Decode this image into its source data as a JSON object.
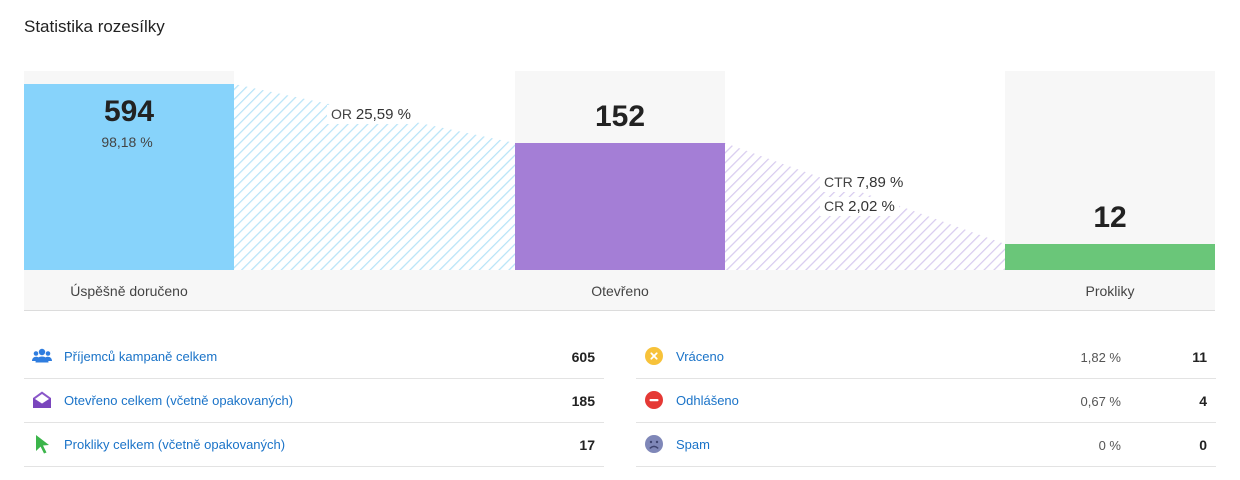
{
  "title": "Statistika rozesílky",
  "funnel": {
    "delivered": {
      "value": "594",
      "percent": "98,18 %",
      "label": "Úspěšně doručeno",
      "color": "#87d3fb"
    },
    "opened": {
      "value": "152",
      "label": "Otevřeno",
      "color": "#a47ed6"
    },
    "clicks": {
      "value": "12",
      "label": "Prokliky",
      "color": "#6ac679"
    },
    "open_rate": {
      "prefix": "OR",
      "value": "25,59 %"
    },
    "click_rate": {
      "prefix": "CTR",
      "value": "7,89 %"
    },
    "conversion_rate": {
      "prefix": "CR",
      "value": "2,02 %"
    }
  },
  "stats_left": [
    {
      "label": "Příjemců kampaně celkem",
      "value": "605",
      "icon": "users-icon",
      "color": "#2f7ddf"
    },
    {
      "label": "Otevřeno celkem (včetně opakovaných)",
      "value": "185",
      "icon": "open-envelope-icon",
      "color": "#8a57c9"
    },
    {
      "label": "Prokliky celkem (včetně opakovaných)",
      "value": "17",
      "icon": "cursor-icon",
      "color": "#3bb54a"
    }
  ],
  "stats_right": [
    {
      "label": "Vráceno",
      "percent": "1,82 %",
      "value": "11",
      "icon": "bounce-icon",
      "color": "#f7c23a"
    },
    {
      "label": "Odhlášeno",
      "percent": "0,67 %",
      "value": "4",
      "icon": "unsubscribe-icon",
      "color": "#e53935"
    },
    {
      "label": "Spam",
      "percent": "0 %",
      "value": "0",
      "icon": "spam-face-icon",
      "color": "#7f87b8"
    }
  ]
}
